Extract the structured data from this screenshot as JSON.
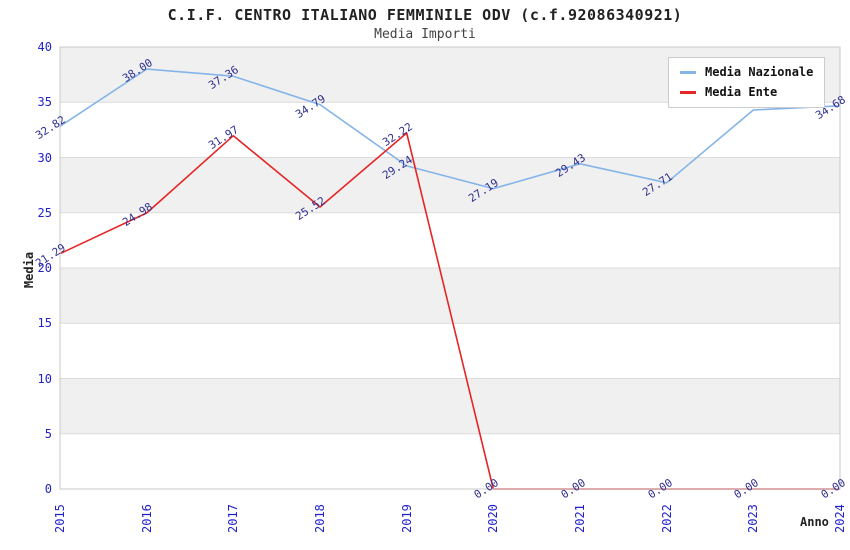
{
  "title": "C.I.F. CENTRO ITALIANO FEMMINILE ODV (c.f.92086340921)",
  "subtitle": "Media Importi",
  "chart_data": {
    "type": "line",
    "categories": [
      "2015",
      "2016",
      "2017",
      "2018",
      "2019",
      "2020",
      "2021",
      "2022",
      "2023",
      "2024"
    ],
    "series": [
      {
        "name": "Media Nazionale",
        "color": "#85b4e8",
        "values": [
          32.82,
          38.0,
          37.36,
          34.79,
          29.24,
          27.19,
          29.43,
          27.71,
          34.3,
          34.68
        ],
        "point_labels": [
          "32.82",
          "38.00",
          "37.36",
          "34.79",
          "29.24",
          "27.19",
          "29.43",
          "27.71",
          "",
          "34.68"
        ]
      },
      {
        "name": "Media Ente",
        "color": "#e62626",
        "values": [
          21.29,
          24.98,
          31.97,
          25.52,
          32.22,
          0.0,
          0.0,
          0.0,
          0.0,
          0.0
        ],
        "point_labels": [
          "21.29",
          "24.98",
          "31.97",
          "25.52",
          "32.22",
          "0.00",
          "0.00",
          "0.00",
          "0.00",
          "0.00"
        ]
      }
    ],
    "xlabel": "Anno",
    "ylabel": "Media",
    "ylim": [
      0,
      40
    ],
    "ytick_step": 5,
    "grid": "horizontal-bands-alternating",
    "legend_position": "top-right"
  },
  "colors": {
    "band_gray": "#f0f0f0",
    "band_white": "#ffffff",
    "gridline": "#dcdcdc",
    "plot_border": "#c8c8c8",
    "tick_label": "#2222cc",
    "data_label": "#2e2e8f",
    "title_text": "#222222",
    "legend_border": "#cccccc"
  }
}
